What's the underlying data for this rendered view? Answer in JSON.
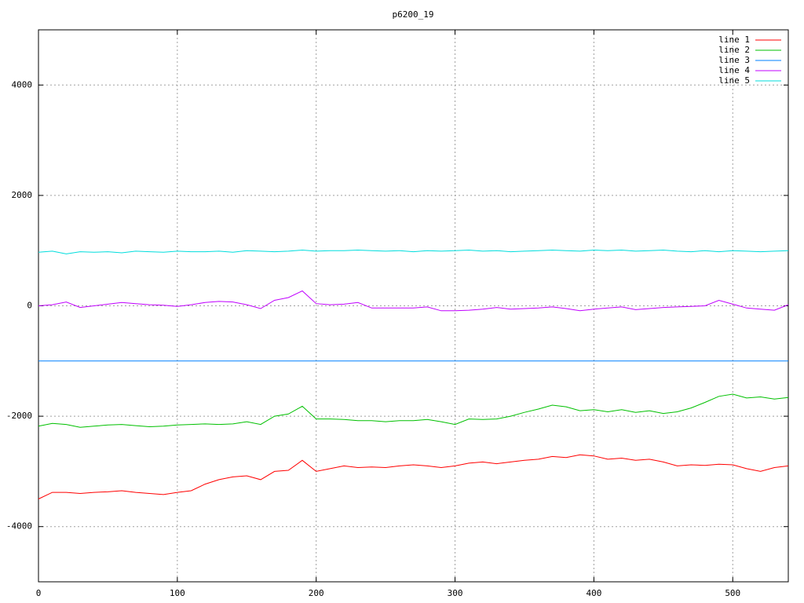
{
  "chart_data": {
    "type": "line",
    "title": "p6200_19",
    "x": [
      0,
      10,
      20,
      30,
      40,
      50,
      60,
      70,
      80,
      90,
      100,
      110,
      120,
      130,
      140,
      150,
      160,
      170,
      180,
      190,
      200,
      210,
      220,
      230,
      240,
      250,
      260,
      270,
      280,
      290,
      300,
      310,
      320,
      330,
      340,
      350,
      360,
      370,
      380,
      390,
      400,
      410,
      420,
      430,
      440,
      450,
      460,
      470,
      480,
      490,
      500,
      510,
      520,
      530,
      540
    ],
    "xlim": [
      0,
      540
    ],
    "xticks": [
      0,
      100,
      200,
      300,
      400,
      500
    ],
    "ylim": [
      -5000,
      5000
    ],
    "yticks": [
      -4000,
      -2000,
      0,
      2000,
      4000
    ],
    "grid": true,
    "legend": "top-right",
    "series": [
      {
        "name": "line 1",
        "color": "#ff0000",
        "values": [
          -3500,
          -3380,
          -3380,
          -3400,
          -3380,
          -3370,
          -3350,
          -3380,
          -3400,
          -3420,
          -3380,
          -3350,
          -3230,
          -3150,
          -3100,
          -3080,
          -3150,
          -3000,
          -2980,
          -2800,
          -3000,
          -2950,
          -2900,
          -2930,
          -2920,
          -2930,
          -2900,
          -2880,
          -2900,
          -2930,
          -2900,
          -2850,
          -2830,
          -2860,
          -2830,
          -2800,
          -2780,
          -2730,
          -2750,
          -2700,
          -2720,
          -2780,
          -2760,
          -2800,
          -2780,
          -2830,
          -2900,
          -2880,
          -2890,
          -2870,
          -2880,
          -2950,
          -3000,
          -2930,
          -2900
        ]
      },
      {
        "name": "line 2",
        "color": "#00c000",
        "values": [
          -2180,
          -2130,
          -2150,
          -2200,
          -2180,
          -2160,
          -2150,
          -2170,
          -2190,
          -2180,
          -2160,
          -2150,
          -2140,
          -2150,
          -2140,
          -2100,
          -2150,
          -2000,
          -1960,
          -1820,
          -2050,
          -2050,
          -2060,
          -2080,
          -2080,
          -2100,
          -2080,
          -2080,
          -2060,
          -2100,
          -2150,
          -2050,
          -2060,
          -2050,
          -2000,
          -1930,
          -1870,
          -1800,
          -1830,
          -1900,
          -1880,
          -1920,
          -1880,
          -1930,
          -1900,
          -1950,
          -1920,
          -1850,
          -1750,
          -1640,
          -1600,
          -1670,
          -1650,
          -1690,
          -1660
        ]
      },
      {
        "name": "line 3",
        "color": "#0080ff",
        "values": [
          -1000,
          -1000,
          -1000,
          -1000,
          -1000,
          -1000,
          -1000,
          -1000,
          -1000,
          -1000,
          -1000,
          -1000,
          -1000,
          -1000,
          -1000,
          -1000,
          -1000,
          -1000,
          -1000,
          -1000,
          -1000,
          -1000,
          -1000,
          -1000,
          -1000,
          -1000,
          -1000,
          -1000,
          -1000,
          -1000,
          -1000,
          -1000,
          -1000,
          -1000,
          -1000,
          -1000,
          -1000,
          -1000,
          -1000,
          -1000,
          -1000,
          -1000,
          -1000,
          -1000,
          -1000,
          -1000,
          -1000,
          -1000,
          -1000,
          -1000,
          -1000,
          -1000,
          -1000,
          -1000,
          -1000
        ]
      },
      {
        "name": "line 4",
        "color": "#c000ff",
        "values": [
          0,
          20,
          70,
          -30,
          0,
          30,
          60,
          40,
          20,
          10,
          -10,
          20,
          60,
          80,
          70,
          20,
          -50,
          100,
          150,
          270,
          40,
          20,
          30,
          60,
          -40,
          -40,
          -40,
          -40,
          -20,
          -90,
          -90,
          -80,
          -60,
          -30,
          -60,
          -50,
          -40,
          -20,
          -50,
          -90,
          -60,
          -40,
          -20,
          -70,
          -50,
          -30,
          -20,
          -10,
          0,
          100,
          30,
          -40,
          -60,
          -80,
          20
        ]
      },
      {
        "name": "line 5",
        "color": "#00dddd",
        "values": [
          970,
          990,
          940,
          980,
          970,
          980,
          960,
          990,
          980,
          970,
          990,
          980,
          980,
          990,
          970,
          1000,
          990,
          980,
          990,
          1010,
          990,
          1000,
          1000,
          1010,
          1000,
          990,
          1000,
          980,
          1000,
          990,
          1000,
          1010,
          990,
          1000,
          980,
          990,
          1000,
          1010,
          1000,
          990,
          1010,
          1000,
          1010,
          990,
          1000,
          1010,
          990,
          980,
          1000,
          980,
          1000,
          990,
          980,
          990,
          1000
        ]
      }
    ]
  }
}
